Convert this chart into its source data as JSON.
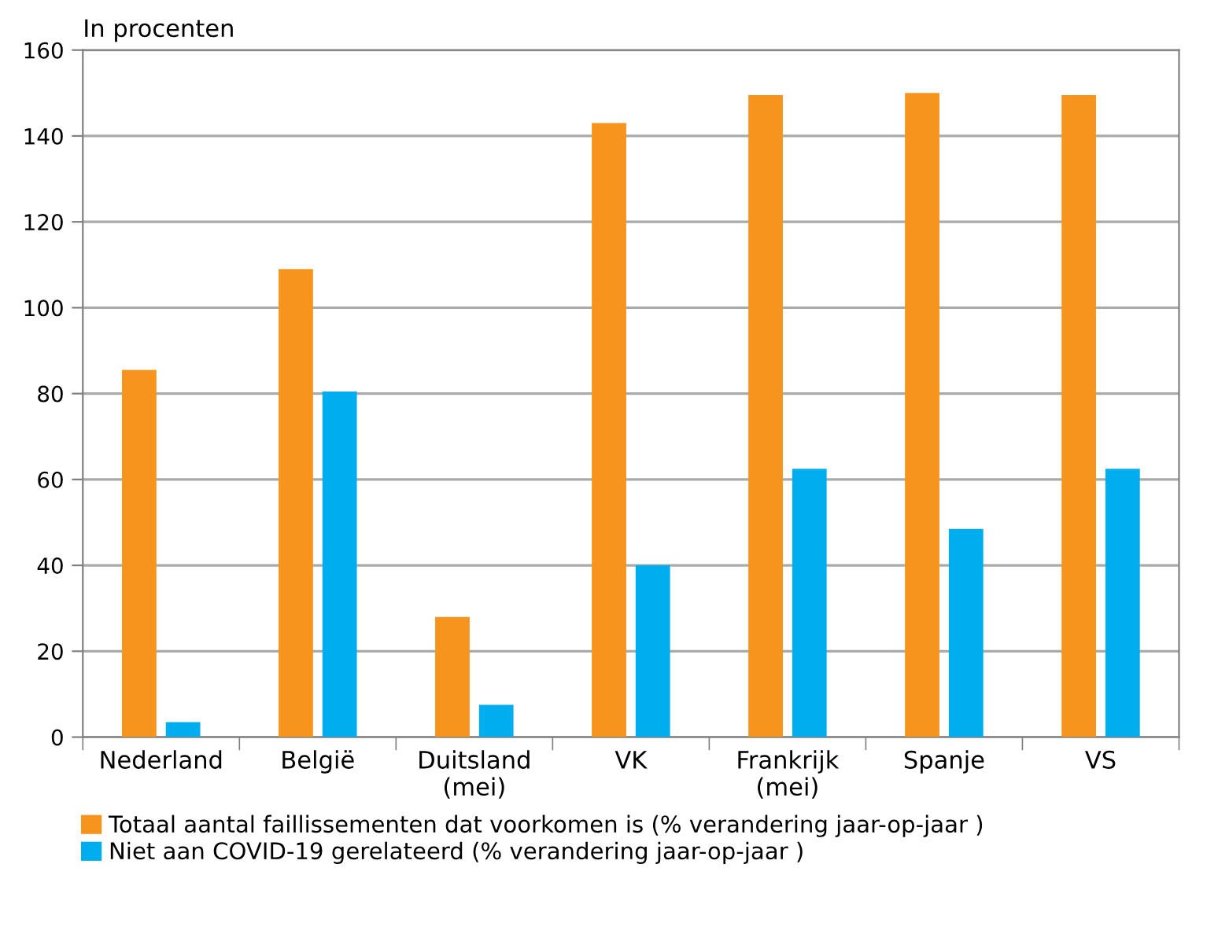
{
  "chart_data": {
    "type": "bar",
    "ylabel": "In procenten",
    "categories": [
      "Nederland",
      "België",
      "Duitsland\n(mei)",
      "VK",
      "Frankrijk\n(mei)",
      "Spanje",
      "VS"
    ],
    "series": [
      {
        "name": "Totaal aantal faillissementen dat voorkomen is (% verandering jaar-op-jaar )",
        "color": "#f7941d",
        "values": [
          85.5,
          109,
          28,
          143,
          149.5,
          150,
          149.5
        ]
      },
      {
        "name": "Niet aan COVID-19 gerelateerd (% verandering jaar-op-jaar )",
        "color": "#00aeef",
        "values": [
          3.5,
          80.5,
          7.5,
          40,
          62.5,
          48.5,
          62.5
        ]
      }
    ],
    "ylim": [
      0,
      160
    ],
    "yticks": [
      0,
      20,
      40,
      60,
      80,
      100,
      120,
      140,
      160
    ],
    "grid": "y",
    "legend": "bottom left"
  }
}
